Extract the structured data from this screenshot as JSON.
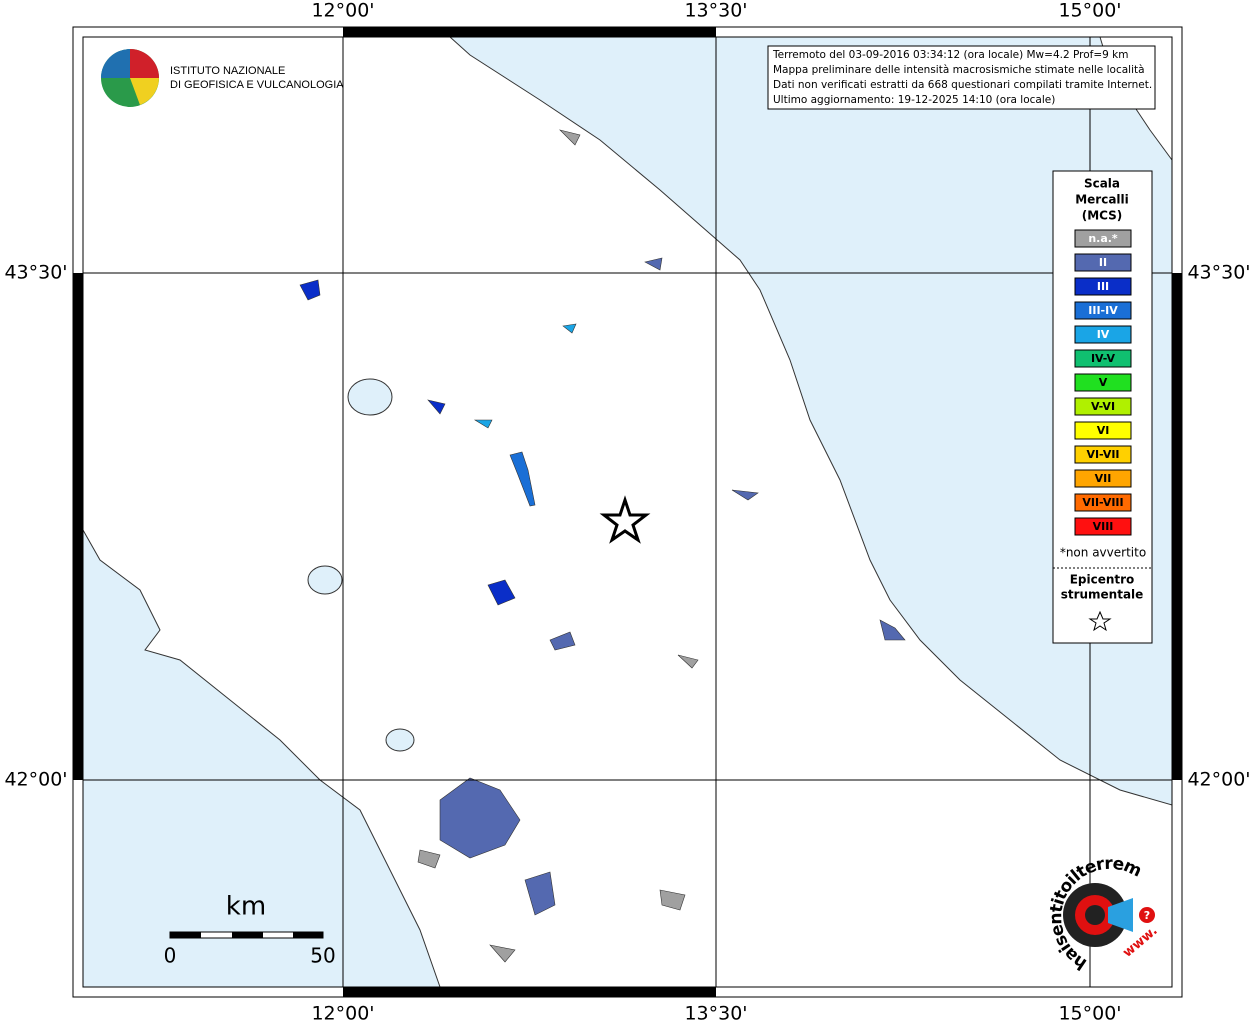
{
  "header": {
    "lines": [
      "Terremoto del 03-09-2016 03:34:12 (ora locale) Mw=4.2 Prof=9 km",
      "Mappa preliminare delle intensità macrosismiche stimate nelle località",
      "Dati non verificati estratti da 668 questionari compilati tramite Internet.",
      "Ultimo aggiornamento: 19-12-2025 14:10 (ora locale)"
    ]
  },
  "logo_ingv": {
    "line1": "ISTITUTO NAZIONALE",
    "line2": "DI GEOFISICA E VULCANOLOGIA"
  },
  "axes": {
    "top": [
      "12°00'",
      "13°30'",
      "15°00'"
    ],
    "bottom": [
      "12°00'",
      "13°30'",
      "15°00'"
    ],
    "left": [
      "43°30'",
      "42°00'"
    ],
    "right": [
      "43°30'",
      "42°00'"
    ]
  },
  "legend": {
    "title": [
      "Scala",
      "Mercalli",
      "(MCS)"
    ],
    "items": [
      {
        "label": "n.a.*",
        "color": "#a0a0a0"
      },
      {
        "label": "II",
        "color": "#5469b0"
      },
      {
        "label": "III",
        "color": "#0a2ec8"
      },
      {
        "label": "III-IV",
        "color": "#1a6fd6"
      },
      {
        "label": "IV",
        "color": "#1aa5e6"
      },
      {
        "label": "IV-V",
        "color": "#10c070"
      },
      {
        "label": "V",
        "color": "#20e020"
      },
      {
        "label": "V-VI",
        "color": "#b0f000"
      },
      {
        "label": "VI",
        "color": "#ffff00"
      },
      {
        "label": "VI-VII",
        "color": "#ffd000"
      },
      {
        "label": "VII",
        "color": "#ffa500"
      },
      {
        "label": "VII-VIII",
        "color": "#ff6a00"
      },
      {
        "label": "VIII",
        "color": "#ff1010"
      }
    ],
    "note": "*non avvertito",
    "epicenter_title": [
      "Epicentro",
      "strumentale"
    ]
  },
  "scale_bar": {
    "unit": "km",
    "labels": [
      "0",
      "50"
    ]
  },
  "logo_hsit": {
    "text": "haisentitoilterremoto.it",
    "www": "www.",
    "mark": "?"
  }
}
